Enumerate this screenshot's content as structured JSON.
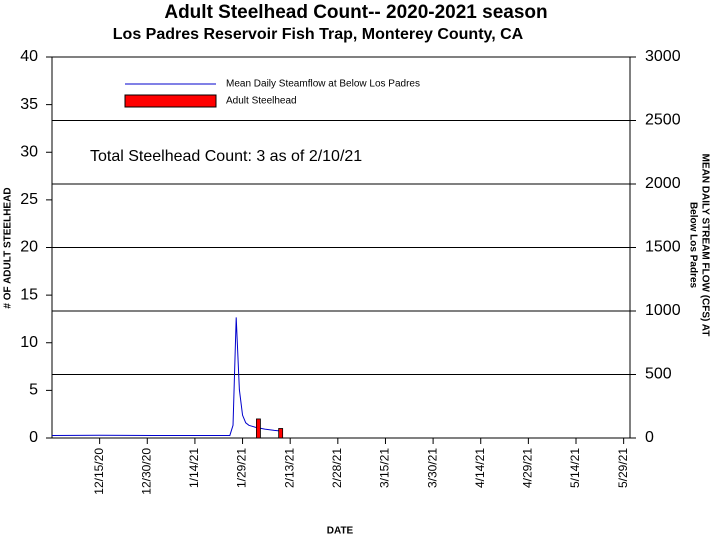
{
  "chart_data": {
    "type": "combo",
    "title": "Adult Steelhead Count-- 2020-2021 season",
    "subtitle": "Los Padres Reservoir Fish Trap, Monterey County, CA",
    "xlabel": "DATE",
    "ylabel": "# OF ADULT STEELHEAD",
    "y2label": [
      "MEAN DAILY STREAM FLOW (CFS) AT",
      "Below Los Padres"
    ],
    "annotation": "Total Steelhead Count: 3 as of 2/10/21",
    "xlim": [
      "2020-11-30",
      "2021-05-31"
    ],
    "xticks": [
      {
        "value": "2020-12-15",
        "label": "12/15/20"
      },
      {
        "value": "2020-12-30",
        "label": "12/30/20"
      },
      {
        "value": "2021-01-14",
        "label": "1/14/21"
      },
      {
        "value": "2021-01-29",
        "label": "1/29/21"
      },
      {
        "value": "2021-02-13",
        "label": "2/13/21"
      },
      {
        "value": "2021-02-28",
        "label": "2/28/21"
      },
      {
        "value": "2021-03-15",
        "label": "3/15/21"
      },
      {
        "value": "2021-03-30",
        "label": "3/30/21"
      },
      {
        "value": "2021-04-14",
        "label": "4/14/21"
      },
      {
        "value": "2021-04-29",
        "label": "4/29/21"
      },
      {
        "value": "2021-05-14",
        "label": "5/14/21"
      },
      {
        "value": "2021-05-29",
        "label": "5/29/21"
      }
    ],
    "ylim": [
      0,
      40
    ],
    "yticks": [
      0,
      5,
      10,
      15,
      20,
      25,
      30,
      35,
      40
    ],
    "y2lim": [
      0,
      3000
    ],
    "y2ticks": [
      0,
      500,
      1000,
      1500,
      2000,
      2500,
      3000
    ],
    "grid": "y2",
    "series": [
      {
        "name": "Mean Daily Steamflow at Below Los Padres",
        "type": "line",
        "axis": "y2",
        "color": "#0000cc",
        "x": [
          "2020-11-30",
          "2020-12-15",
          "2021-01-01",
          "2021-01-25",
          "2021-01-26",
          "2021-01-27",
          "2021-01-28",
          "2021-01-29",
          "2021-01-30",
          "2021-01-31",
          "2021-02-02",
          "2021-02-05",
          "2021-02-08",
          "2021-02-10"
        ],
        "values": [
          20,
          22,
          20,
          20,
          100,
          950,
          380,
          180,
          120,
          100,
          85,
          70,
          60,
          55
        ]
      },
      {
        "name": "Adult Steelhead",
        "type": "bar",
        "axis": "y",
        "color": "#ff0000",
        "x": [
          "2021-02-03",
          "2021-02-10"
        ],
        "values": [
          2,
          1
        ]
      }
    ]
  }
}
